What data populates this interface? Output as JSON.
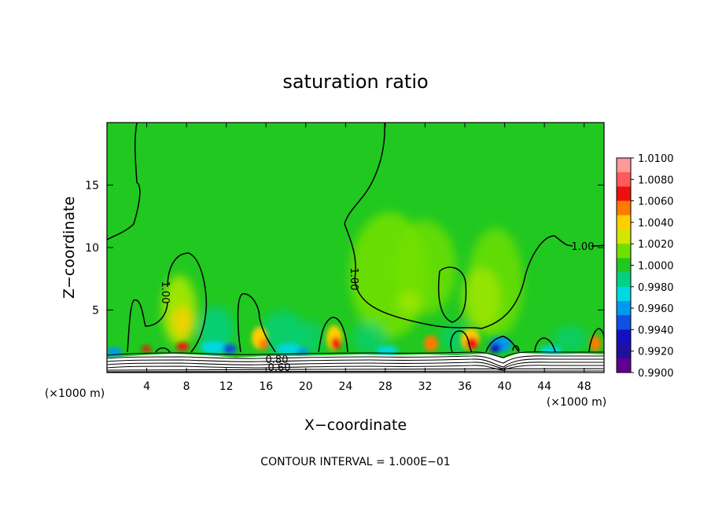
{
  "chart_data": {
    "type": "heatmap",
    "title": "saturation ratio",
    "xlabel": "X−coordinate",
    "ylabel": "Z−coordinate",
    "x_unit_left": "(×1000 m)",
    "x_unit_right": "(×1000 m)",
    "footer": "CONTOUR INTERVAL = 1.000E−01",
    "xlim": [
      0,
      50
    ],
    "ylim": [
      0,
      20
    ],
    "x_ticks": [
      4,
      8,
      12,
      16,
      20,
      24,
      28,
      32,
      36,
      40,
      44,
      48
    ],
    "y_ticks": [
      5,
      10,
      15
    ],
    "colorbar": {
      "labels": [
        "1.0100",
        "1.0080",
        "1.0060",
        "1.0040",
        "1.0020",
        "1.0000",
        "0.9980",
        "0.9960",
        "0.9940",
        "0.9920",
        "0.9900"
      ],
      "colors": [
        "#ff9a9a",
        "#ff5a5a",
        "#ee1010",
        "#ff7a00",
        "#ffce00",
        "#d4e600",
        "#70e000",
        "#20c820",
        "#00d088",
        "#00d8e0",
        "#0098f0",
        "#1050e0",
        "#1010c0",
        "#2010a0",
        "#600090"
      ]
    },
    "contour_labels": [
      "1.00",
      "1.00",
      "1.00",
      "0.80",
      "0.60"
    ]
  }
}
